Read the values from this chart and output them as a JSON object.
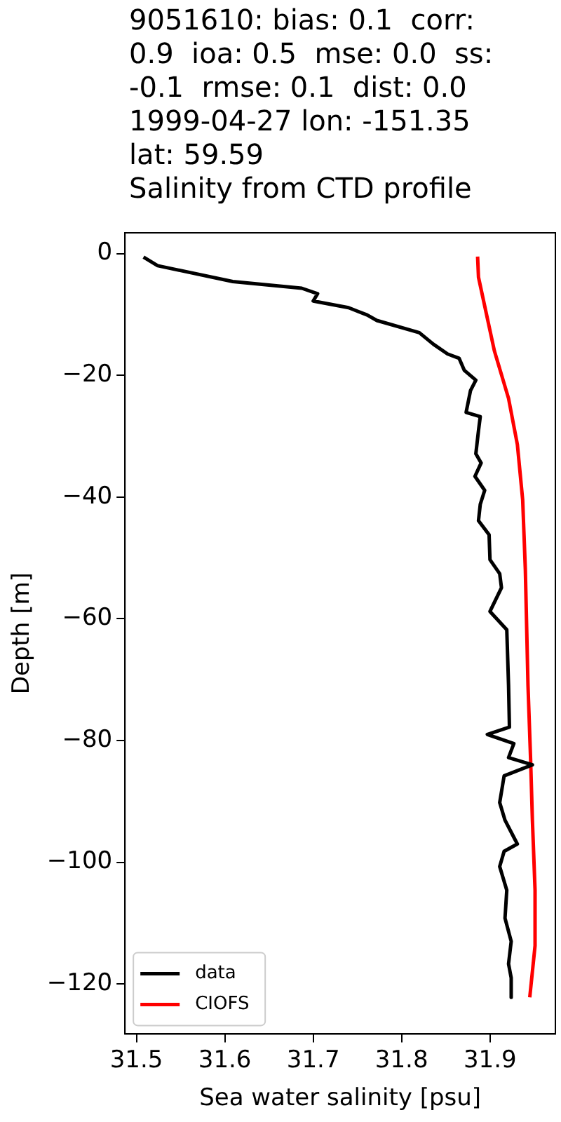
{
  "chart_data": {
    "type": "line",
    "title": "9051610: bias: 0.1  corr:\n0.9  ioa: 0.5  mse: 0.0  ss:\n-0.1  rmse: 0.1  dist: 0.0\n1999-04-27 lon: -151.35\nlat: 59.59\nSalinity from CTD profile",
    "xlabel": "Sea water salinity [psu]",
    "ylabel": "Depth [m]",
    "xlim": [
      31.487,
      31.974
    ],
    "xticks": [
      31.5,
      31.6,
      31.7,
      31.8,
      31.9
    ],
    "ylim": [
      -128.2,
      3.4
    ],
    "yticks": [
      0,
      -20,
      -40,
      -60,
      -80,
      -100,
      -120
    ],
    "legend": "bottom left",
    "grid": false,
    "series": [
      {
        "name": "data",
        "color": "#000000",
        "x": [
          31.508,
          31.524,
          31.609,
          31.687,
          31.705,
          31.7,
          31.74,
          31.761,
          31.772,
          31.82,
          31.836,
          31.852,
          31.865,
          31.871,
          31.884,
          31.878,
          31.873,
          31.889,
          31.887,
          31.884,
          31.89,
          31.883,
          31.894,
          31.889,
          31.887,
          31.899,
          31.9,
          31.911,
          31.913,
          31.9,
          31.919,
          31.921,
          31.922,
          31.897,
          31.927,
          31.921,
          31.948,
          31.916,
          31.911,
          31.917,
          31.927,
          31.931,
          31.916,
          31.911,
          31.919,
          31.917,
          31.924,
          31.921,
          31.924,
          31.924
        ],
        "values": [
          -0.6,
          -2.0,
          -4.6,
          -5.7,
          -6.6,
          -7.8,
          -8.9,
          -10.1,
          -11.0,
          -13.0,
          -14.9,
          -16.5,
          -17.2,
          -19.2,
          -20.8,
          -22.5,
          -26.1,
          -26.8,
          -29.1,
          -32.9,
          -34.4,
          -36.6,
          -38.9,
          -41.2,
          -43.9,
          -46.2,
          -50.3,
          -52.6,
          -54.9,
          -58.8,
          -61.8,
          -70.9,
          -77.8,
          -79.0,
          -80.5,
          -82.8,
          -84.0,
          -85.8,
          -90.2,
          -93.1,
          -95.9,
          -97.0,
          -98.2,
          -100.7,
          -104.6,
          -109.2,
          -113.0,
          -116.7,
          -119.0,
          -122.2
        ]
      },
      {
        "name": "CIOFS",
        "color": "#ff0000",
        "x": [
          31.886,
          31.887,
          31.905,
          31.921,
          31.931,
          31.937,
          31.94,
          31.943,
          31.946,
          31.948,
          31.951,
          31.951,
          31.945
        ],
        "values": [
          -0.5,
          -3.9,
          -16.0,
          -23.8,
          -31.4,
          -40.5,
          -51.9,
          -70.9,
          -83.3,
          -93.1,
          -104.6,
          -113.7,
          -122.2
        ]
      }
    ]
  }
}
